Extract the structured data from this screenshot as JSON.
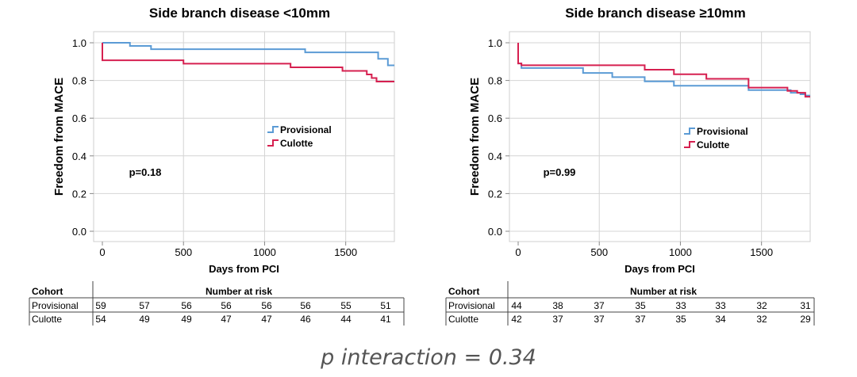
{
  "footer_text": "p interaction = 0.34",
  "chart_data": [
    {
      "type": "line",
      "title": "Side branch disease <10mm",
      "xlabel": "Days from PCI",
      "ylabel": "Freedom from MACE",
      "xlim": [
        0,
        1800
      ],
      "ylim": [
        0.0,
        1.0
      ],
      "xticks": [
        "0",
        "500",
        "1000",
        "1500"
      ],
      "yticks": [
        "0.0",
        "0.2",
        "0.4",
        "0.6",
        "0.8",
        "1.0"
      ],
      "grid": true,
      "legend_position": "center-right",
      "annotation": "p=0.18",
      "series": [
        {
          "name": "Provisional",
          "color": "#5b9bd5",
          "x": [
            0,
            170,
            300,
            1250,
            1700,
            1760,
            1800
          ],
          "y": [
            1.0,
            0.983,
            0.966,
            0.949,
            0.915,
            0.88,
            0.88
          ]
        },
        {
          "name": "Culotte",
          "color": "#d62050",
          "x": [
            0,
            0,
            500,
            1160,
            1480,
            1630,
            1660,
            1690,
            1800
          ],
          "y": [
            1.0,
            0.907,
            0.889,
            0.87,
            0.851,
            0.832,
            0.813,
            0.794,
            0.794
          ]
        }
      ],
      "risk_table": {
        "cohort_header": "Cohort",
        "header": "Number at risk",
        "rows": [
          {
            "label": "Provisional",
            "values": [
              59,
              57,
              56,
              56,
              56,
              56,
              55,
              51
            ]
          },
          {
            "label": "Culotte",
            "values": [
              54,
              49,
              49,
              47,
              47,
              46,
              44,
              41
            ]
          }
        ]
      }
    },
    {
      "type": "line",
      "title": "Side branch disease ≥10mm",
      "xlabel": "Days from PCI",
      "ylabel": "Freedom from MACE",
      "xlim": [
        0,
        1800
      ],
      "ylim": [
        0.0,
        1.0
      ],
      "xticks": [
        "0",
        "500",
        "1000",
        "1500"
      ],
      "yticks": [
        "0.0",
        "0.2",
        "0.4",
        "0.6",
        "0.8",
        "1.0"
      ],
      "grid": true,
      "legend_position": "center-right",
      "annotation": "p=0.99",
      "series": [
        {
          "name": "Provisional",
          "color": "#5b9bd5",
          "x": [
            0,
            0,
            20,
            400,
            580,
            780,
            960,
            1420,
            1680,
            1740,
            1770,
            1800
          ],
          "y": [
            1.0,
            0.89,
            0.866,
            0.84,
            0.818,
            0.795,
            0.772,
            0.749,
            0.735,
            0.727,
            0.72,
            0.72
          ]
        },
        {
          "name": "Culotte",
          "color": "#d62050",
          "x": [
            0,
            0,
            20,
            780,
            960,
            1160,
            1420,
            1660,
            1720,
            1770,
            1800
          ],
          "y": [
            1.0,
            0.89,
            0.881,
            0.857,
            0.833,
            0.809,
            0.762,
            0.745,
            0.735,
            0.714,
            0.714
          ]
        }
      ],
      "risk_table": {
        "cohort_header": "Cohort",
        "header": "Number at risk",
        "rows": [
          {
            "label": "Provisional",
            "values": [
              44,
              38,
              37,
              35,
              33,
              33,
              32,
              31
            ]
          },
          {
            "label": "Culotte",
            "values": [
              42,
              37,
              37,
              37,
              35,
              34,
              32,
              29
            ]
          }
        ]
      }
    }
  ]
}
